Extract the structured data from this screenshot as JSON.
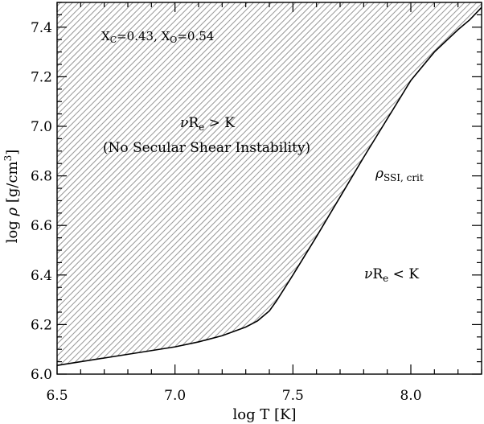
{
  "chart_data": {
    "type": "area",
    "title": "",
    "xlabel": "log T [K]",
    "ylabel_prefix": "log ",
    "ylabel_symbol": "ρ",
    "ylabel_unit": " [g/cm",
    "ylabel_exp": "3",
    "ylabel_close": "]",
    "xlim": [
      6.5,
      8.3
    ],
    "ylim": [
      6.0,
      7.5
    ],
    "xticks": [
      6.5,
      7.0,
      7.5,
      8.0
    ],
    "xtick_labels": [
      "6.5",
      "7.0",
      "7.5",
      "8.0"
    ],
    "yticks": [
      6.0,
      6.2,
      6.4,
      6.6,
      6.8,
      7.0,
      7.2,
      7.4
    ],
    "ytick_labels": [
      "6.0",
      "6.2",
      "6.4",
      "6.6",
      "6.8",
      "7.0",
      "7.2",
      "7.4"
    ],
    "grid": false,
    "hatched_region": "above-curve",
    "boundary_curve": {
      "label": "ρSSI, crit",
      "x": [
        6.5,
        6.6,
        6.7,
        6.8,
        6.9,
        7.0,
        7.1,
        7.2,
        7.3,
        7.35,
        7.4,
        7.43,
        7.5,
        7.6,
        7.7,
        7.8,
        7.9,
        8.0,
        8.1,
        8.2,
        8.25,
        8.3
      ],
      "y": [
        6.035,
        6.05,
        6.065,
        6.08,
        6.095,
        6.11,
        6.13,
        6.155,
        6.19,
        6.215,
        6.255,
        6.295,
        6.4,
        6.555,
        6.715,
        6.875,
        7.03,
        7.185,
        7.3,
        7.39,
        7.43,
        7.48
      ]
    },
    "annotations": {
      "params_a": "X",
      "params_a_sub": "C",
      "params_b": "=0.43, X",
      "params_c_sub": "O",
      "params_d": "=0.54",
      "upper_region_nu": "ν",
      "upper_region_R": "R",
      "upper_region_sub": "e",
      "upper_region_rel": " > K",
      "upper_region_note": "(No Secular Shear Instability)",
      "curve_symbol": "ρ",
      "curve_sub": "SSI, crit",
      "lower_region_nu": "ν",
      "lower_region_R": "R",
      "lower_region_sub": "e",
      "lower_region_rel": " < K"
    },
    "colors": {
      "hatch": "#9a9a9a",
      "curve": "#000000",
      "axes": "#000000"
    }
  }
}
